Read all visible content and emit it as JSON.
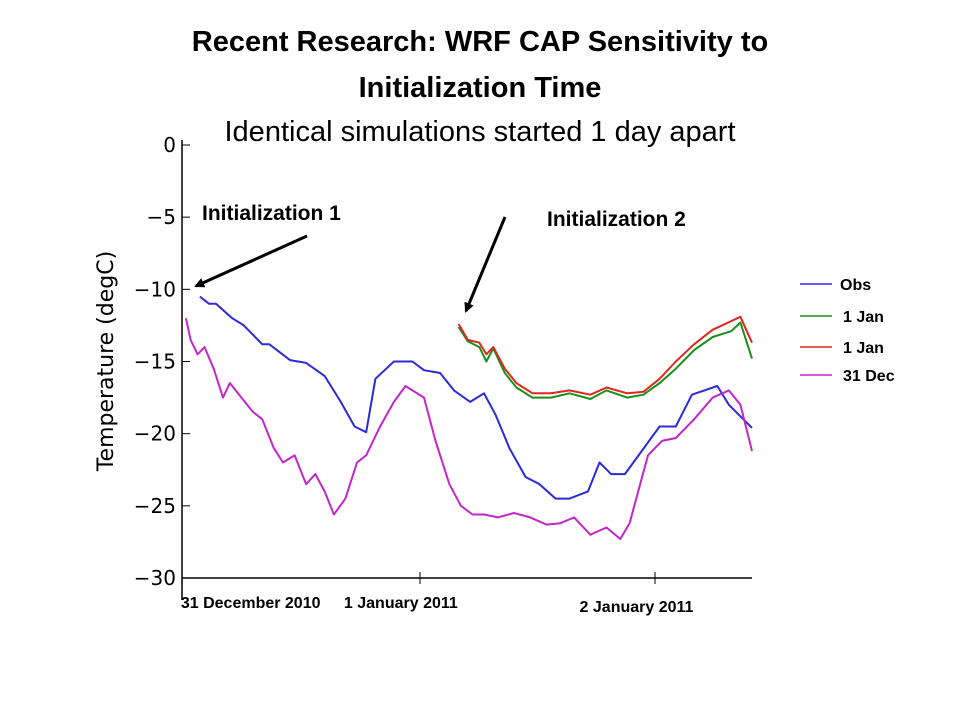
{
  "slide": {
    "title_line1": "Recent Research: WRF CAP Sensitivity to",
    "title_line2": "Initialization Time",
    "subtitle": "Identical simulations started 1 day apart"
  },
  "annotations": {
    "init1": "Initialization 1",
    "init2": "Initialization 2"
  },
  "chart_data": {
    "type": "line",
    "ylabel": "Temperature (degC)",
    "xlabel": "",
    "ylim": [
      -30,
      0
    ],
    "yticks": [
      "0",
      "−5",
      "−10",
      "−15",
      "−20",
      "−25",
      "−30"
    ],
    "xlim": [
      0,
      2.45
    ],
    "x_units": "days since 00 UTC 31 December 2010",
    "date_labels": [
      {
        "text": "31 December 2010",
        "x": 0.28
      },
      {
        "text": "1 January 2011",
        "x": 0.93
      },
      {
        "text": "2 January 2011",
        "x": 1.95
      }
    ],
    "legend_position": "right",
    "colors": {
      "blue": "#2b2bd9",
      "green": "#1a8f1a",
      "red": "#e0261f",
      "magenta": "#c326c9"
    },
    "series": [
      {
        "name": "Obs",
        "color": "#2b2bd9",
        "x": [
          0.06,
          0.1,
          0.13,
          0.2,
          0.25,
          0.33,
          0.36,
          0.45,
          0.52,
          0.6,
          0.67,
          0.73,
          0.78,
          0.82,
          0.9,
          0.98,
          1.03,
          1.1,
          1.16,
          1.23,
          1.29,
          1.34,
          1.4,
          1.47,
          1.53,
          1.6,
          1.66,
          1.74,
          1.79,
          1.84,
          1.9,
          2.05,
          2.12,
          2.19,
          2.3,
          2.35,
          2.45
        ],
        "y": [
          -10.5,
          -11.0,
          -11.0,
          -12.0,
          -12.5,
          -13.8,
          -13.8,
          -14.9,
          -15.1,
          -16.0,
          -17.8,
          -19.5,
          -19.9,
          -16.2,
          -15.0,
          -15.0,
          -15.6,
          -15.8,
          -17.0,
          -17.8,
          -17.2,
          -18.7,
          -21.0,
          -23.0,
          -23.5,
          -24.5,
          -24.5,
          -24.0,
          -22.0,
          -22.8,
          -22.8,
          -19.5,
          -19.5,
          -17.3,
          -16.7,
          -18.0,
          -19.6
        ]
      },
      {
        "name": "1 Jan",
        "color": "#1a8f1a",
        "x": [
          1.18,
          1.22,
          1.27,
          1.3,
          1.33,
          1.38,
          1.43,
          1.5,
          1.58,
          1.66,
          1.75,
          1.82,
          1.91,
          1.98,
          2.05,
          2.12,
          2.2,
          2.28,
          2.36,
          2.4,
          2.45
        ],
        "y": [
          -12.6,
          -13.6,
          -14.0,
          -15.0,
          -14.1,
          -15.8,
          -16.8,
          -17.5,
          -17.5,
          -17.2,
          -17.6,
          -17.0,
          -17.5,
          -17.3,
          -16.5,
          -15.5,
          -14.2,
          -13.3,
          -12.9,
          -12.3,
          -14.8
        ]
      },
      {
        "name": "1 Jan",
        "color": "#e0261f",
        "x": [
          1.18,
          1.22,
          1.27,
          1.3,
          1.33,
          1.38,
          1.43,
          1.5,
          1.58,
          1.66,
          1.75,
          1.82,
          1.91,
          1.98,
          2.05,
          2.12,
          2.2,
          2.28,
          2.36,
          2.4,
          2.45
        ],
        "y": [
          -12.4,
          -13.5,
          -13.7,
          -14.5,
          -14.0,
          -15.5,
          -16.5,
          -17.2,
          -17.2,
          -17.0,
          -17.3,
          -16.8,
          -17.2,
          -17.1,
          -16.2,
          -15.0,
          -13.8,
          -12.8,
          -12.2,
          -11.9,
          -13.7
        ]
      },
      {
        "name": "31 Dec",
        "color": "#c326c9",
        "x": [
          0.0,
          0.02,
          0.05,
          0.08,
          0.12,
          0.16,
          0.19,
          0.24,
          0.29,
          0.33,
          0.38,
          0.42,
          0.47,
          0.52,
          0.56,
          0.6,
          0.64,
          0.69,
          0.74,
          0.78,
          0.84,
          0.9,
          0.95,
          1.03,
          1.08,
          1.14,
          1.19,
          1.24,
          1.29,
          1.35,
          1.42,
          1.49,
          1.56,
          1.62,
          1.68,
          1.75,
          1.82,
          1.88,
          1.92,
          2.0,
          2.06,
          2.12,
          2.2,
          2.28,
          2.35,
          2.4,
          2.45
        ],
        "y": [
          -12.0,
          -13.5,
          -14.5,
          -14.0,
          -15.5,
          -17.5,
          -16.5,
          -17.5,
          -18.5,
          -19.0,
          -21.0,
          -22.0,
          -21.5,
          -23.5,
          -22.8,
          -24.0,
          -25.6,
          -24.5,
          -22.0,
          -21.5,
          -19.5,
          -17.8,
          -16.7,
          -17.5,
          -20.5,
          -23.5,
          -25.0,
          -25.6,
          -25.6,
          -25.8,
          -25.5,
          -25.8,
          -26.3,
          -26.2,
          -25.8,
          -27.0,
          -26.5,
          -27.3,
          -26.2,
          -21.5,
          -20.5,
          -20.3,
          -19.0,
          -17.5,
          -17.0,
          -18.0,
          -21.2
        ]
      }
    ]
  }
}
